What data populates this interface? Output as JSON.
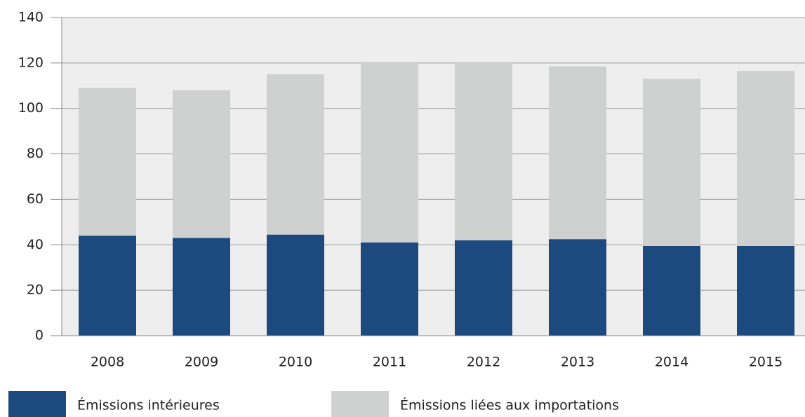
{
  "chart_data": {
    "type": "bar",
    "stacked": true,
    "categories": [
      "2008",
      "2009",
      "2010",
      "2011",
      "2012",
      "2013",
      "2014",
      "2015"
    ],
    "series": [
      {
        "name": "Émissions intérieures",
        "color": "#1c4a7e",
        "values": [
          44,
          43,
          44.5,
          41,
          42,
          42.5,
          39.5,
          39.5
        ]
      },
      {
        "name": "Émissions liées aux importations",
        "color": "#cfd0d0",
        "values": [
          65,
          65,
          70.5,
          79,
          78,
          76,
          73.5,
          77
        ]
      }
    ],
    "ylim": [
      0,
      140
    ],
    "yticks": [
      0,
      20,
      40,
      60,
      80,
      100,
      120,
      140
    ],
    "grid": true
  }
}
